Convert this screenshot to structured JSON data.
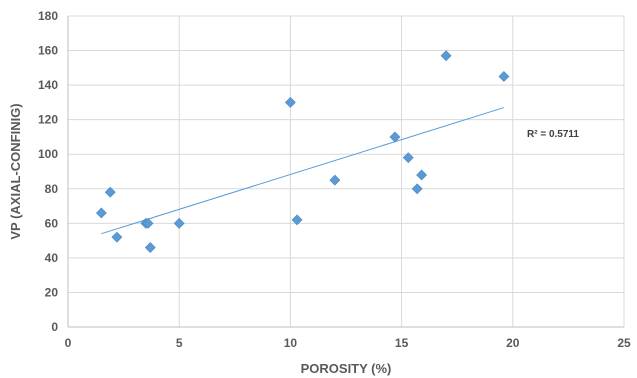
{
  "chart_data": {
    "type": "scatter",
    "title": "",
    "xlabel": "POROSITY (%)",
    "ylabel": "VP (AXIAL-CONFINIG)",
    "xlim": [
      0,
      25
    ],
    "ylim": [
      0,
      180
    ],
    "xticks": [
      0,
      5,
      10,
      15,
      20,
      25
    ],
    "yticks": [
      0,
      20,
      40,
      60,
      80,
      100,
      120,
      140,
      160,
      180
    ],
    "grid": true,
    "marker_color": "#5B9BD5",
    "trendline_color": "#5B9BD5",
    "series": [
      {
        "points": [
          [
            1.5,
            66
          ],
          [
            1.9,
            78
          ],
          [
            2.2,
            52
          ],
          [
            3.5,
            60
          ],
          [
            3.6,
            60
          ],
          [
            3.7,
            46
          ],
          [
            5.0,
            60
          ],
          [
            10.0,
            130
          ],
          [
            10.3,
            62
          ],
          [
            12.0,
            85
          ],
          [
            14.7,
            110
          ],
          [
            15.3,
            98
          ],
          [
            15.7,
            80
          ],
          [
            15.9,
            88
          ],
          [
            17.0,
            157
          ],
          [
            19.6,
            145
          ]
        ]
      }
    ],
    "trendline": {
      "type": "linear",
      "from": [
        1.5,
        54
      ],
      "to": [
        19.6,
        127
      ]
    },
    "annotation": "R² = 0.5711"
  }
}
